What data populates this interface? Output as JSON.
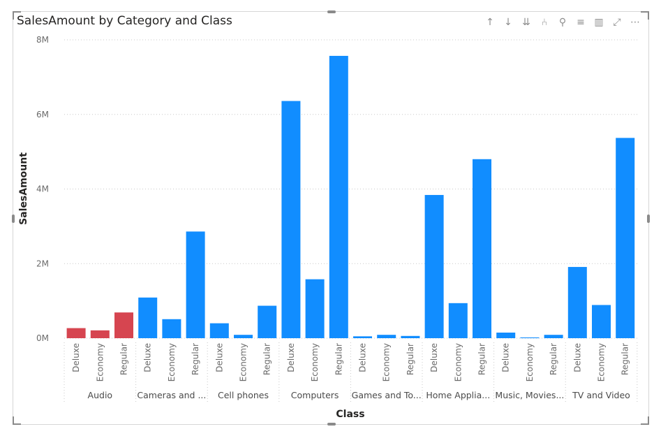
{
  "visual": {
    "title": "SalesAmount by Category and Class",
    "toolbar": [
      {
        "name": "drill-up-icon",
        "glyph": "↑"
      },
      {
        "name": "drill-down-icon",
        "glyph": "↓"
      },
      {
        "name": "expand-all-down-icon",
        "glyph": "⇊"
      },
      {
        "name": "hierarchy-icon",
        "glyph": "⑃"
      },
      {
        "name": "pin-icon",
        "glyph": "⚲"
      },
      {
        "name": "filter-icon",
        "glyph": "≡"
      },
      {
        "name": "format-icon",
        "glyph": "▥"
      },
      {
        "name": "focus-mode-icon",
        "glyph": "⤢"
      },
      {
        "name": "more-options-icon",
        "glyph": "⋯"
      }
    ]
  },
  "chart_data": {
    "type": "bar",
    "title": "SalesAmount by Category and Class",
    "xlabel": "Class",
    "ylabel": "SalesAmount",
    "ylim": [
      0,
      8000000
    ],
    "yticks": [
      0,
      2000000,
      4000000,
      6000000,
      8000000
    ],
    "ytick_labels": [
      "0M",
      "2M",
      "4M",
      "6M",
      "8M"
    ],
    "grid": true,
    "colors": {
      "default": "#118dff",
      "highlight": "#d64550"
    },
    "groups": [
      {
        "category": "Audio",
        "classes": [
          "Deluxe",
          "Economy",
          "Regular"
        ],
        "values": [
          270000,
          210000,
          690000
        ],
        "highlight": true
      },
      {
        "category": "Cameras and ...",
        "classes": [
          "Deluxe",
          "Economy",
          "Regular"
        ],
        "values": [
          1090000,
          510000,
          2860000
        ],
        "highlight": false
      },
      {
        "category": "Cell phones",
        "classes": [
          "Deluxe",
          "Economy",
          "Regular"
        ],
        "values": [
          400000,
          90000,
          870000
        ],
        "highlight": false
      },
      {
        "category": "Computers",
        "classes": [
          "Deluxe",
          "Economy",
          "Regular"
        ],
        "values": [
          6360000,
          1580000,
          7570000
        ],
        "highlight": false
      },
      {
        "category": "Games and To...",
        "classes": [
          "Deluxe",
          "Economy",
          "Regular"
        ],
        "values": [
          50000,
          90000,
          60000
        ],
        "highlight": false
      },
      {
        "category": "Home Applia...",
        "classes": [
          "Deluxe",
          "Economy",
          "Regular"
        ],
        "values": [
          3840000,
          940000,
          4800000
        ],
        "highlight": false
      },
      {
        "category": "Music, Movies...",
        "classes": [
          "Deluxe",
          "Economy",
          "Regular"
        ],
        "values": [
          150000,
          20000,
          90000
        ],
        "highlight": false
      },
      {
        "category": "TV and Video",
        "classes": [
          "Deluxe",
          "Economy",
          "Regular"
        ],
        "values": [
          1910000,
          890000,
          5370000
        ],
        "highlight": false
      }
    ]
  }
}
